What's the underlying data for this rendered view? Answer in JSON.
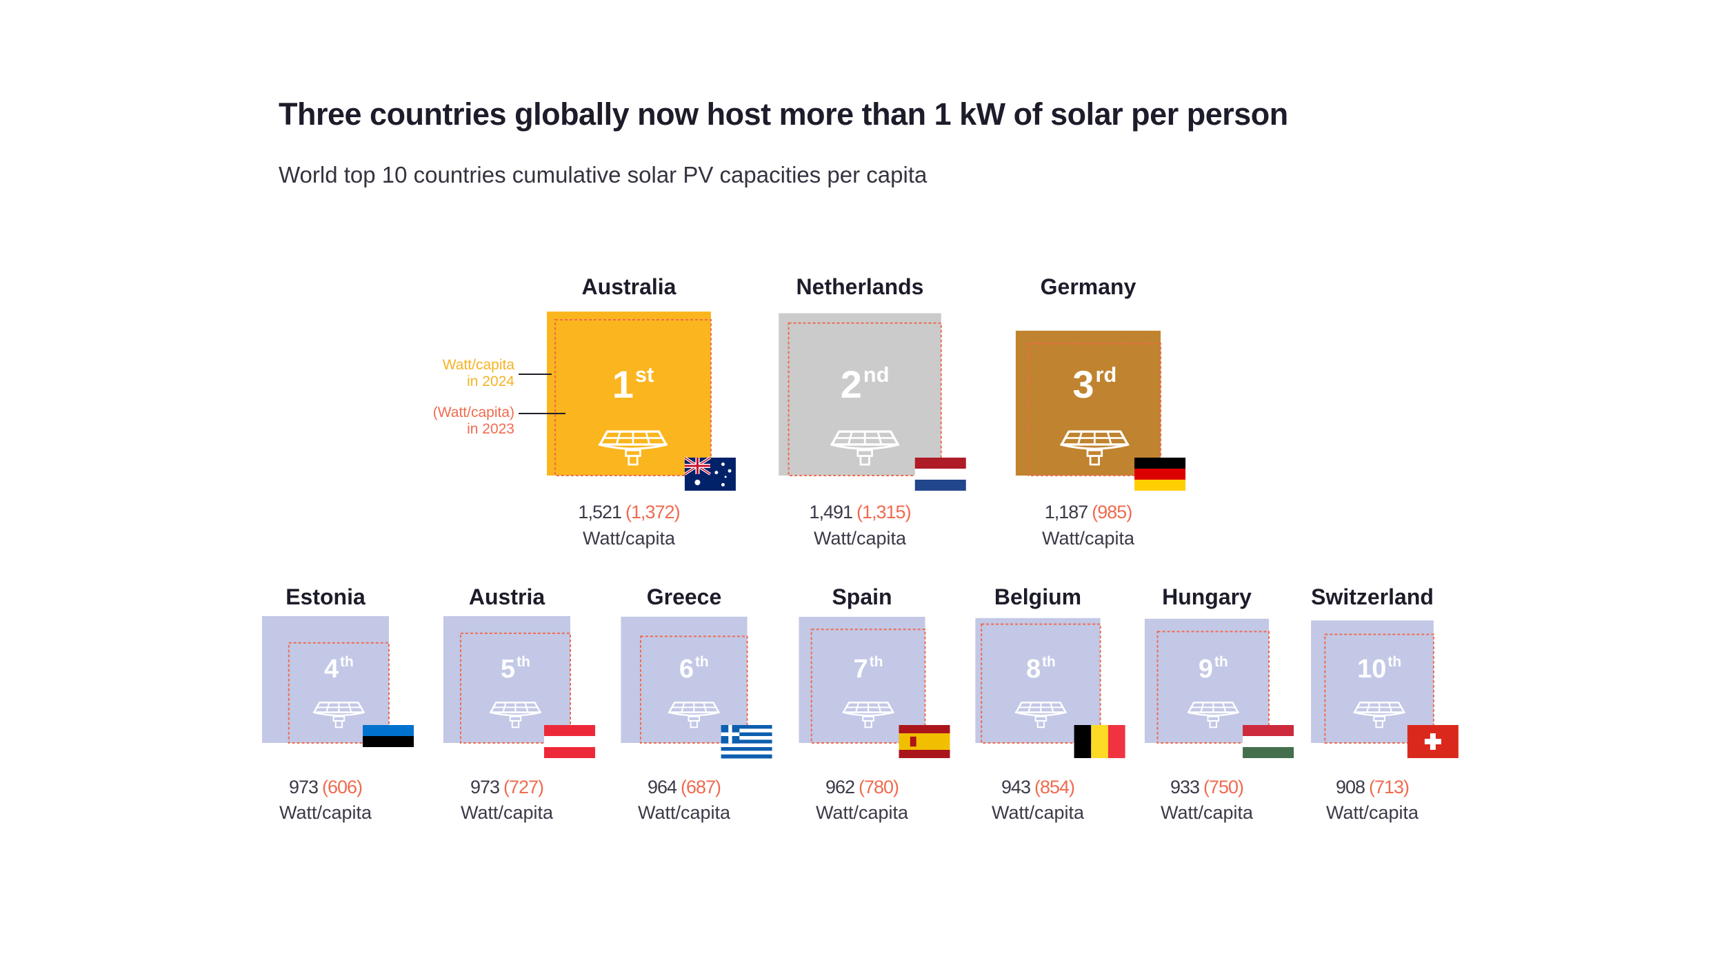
{
  "title": "Three countries globally now host more than 1 kW of solar per person",
  "subtitle": "World top 10 countries cumulative solar PV capacities per capita",
  "legend": {
    "current": "Watt/capita\nin 2024",
    "current_line1": "Watt/capita",
    "current_line2": "in 2024",
    "previous_line1": "(Watt/capita)",
    "previous_line2": "in 2023"
  },
  "unit_label": "Watt/capita",
  "colors": {
    "rank1": "#fbb51e",
    "rank2": "#cbcbcb",
    "rank3": "#c0832f",
    "others": "#c3c8e6",
    "dashed_outline": "#ef6b4f",
    "value_2023": "#ef6b4f"
  },
  "chart_data": {
    "type": "table",
    "title": "Three countries globally now host more than 1 kW of solar per person",
    "subtitle": "World top 10 countries cumulative solar PV capacities per capita",
    "unit": "Watt/capita",
    "series_names": [
      "2024",
      "2023"
    ],
    "rows": [
      {
        "rank": 1,
        "ordinal": "st",
        "country": "Australia",
        "value_2024": 1521,
        "value_2023": 1372,
        "value_2024_text": "1,521",
        "value_2023_text": "(1,372)",
        "flag": "australia-flag"
      },
      {
        "rank": 2,
        "ordinal": "nd",
        "country": "Netherlands",
        "value_2024": 1491,
        "value_2023": 1315,
        "value_2024_text": "1,491",
        "value_2023_text": "(1,315)",
        "flag": "netherlands-flag"
      },
      {
        "rank": 3,
        "ordinal": "rd",
        "country": "Germany",
        "value_2024": 1187,
        "value_2023": 985,
        "value_2024_text": "1,187",
        "value_2023_text": "(985)",
        "flag": "germany-flag"
      },
      {
        "rank": 4,
        "ordinal": "th",
        "country": "Estonia",
        "value_2024": 973,
        "value_2023": 606,
        "value_2024_text": "973",
        "value_2023_text": "(606)",
        "flag": "estonia-flag"
      },
      {
        "rank": 5,
        "ordinal": "th",
        "country": "Austria",
        "value_2024": 973,
        "value_2023": 727,
        "value_2024_text": "973",
        "value_2023_text": "(727)",
        "flag": "austria-flag"
      },
      {
        "rank": 6,
        "ordinal": "th",
        "country": "Greece",
        "value_2024": 964,
        "value_2023": 687,
        "value_2024_text": "964",
        "value_2023_text": "(687)",
        "flag": "greece-flag"
      },
      {
        "rank": 7,
        "ordinal": "th",
        "country": "Spain",
        "value_2024": 962,
        "value_2023": 780,
        "value_2024_text": "962",
        "value_2023_text": "(780)",
        "flag": "spain-flag"
      },
      {
        "rank": 8,
        "ordinal": "th",
        "country": "Belgium",
        "value_2024": 943,
        "value_2023": 854,
        "value_2024_text": "943",
        "value_2023_text": "(854)",
        "flag": "belgium-flag"
      },
      {
        "rank": 9,
        "ordinal": "th",
        "country": "Hungary",
        "value_2024": 933,
        "value_2023": 750,
        "value_2024_text": "933",
        "value_2023_text": "(750)",
        "flag": "hungary-flag"
      },
      {
        "rank": 10,
        "ordinal": "th",
        "country": "Switzerland",
        "value_2024": 908,
        "value_2023": 713,
        "value_2024_text": "908",
        "value_2023_text": "(713)",
        "flag": "switzerland-flag"
      }
    ]
  }
}
